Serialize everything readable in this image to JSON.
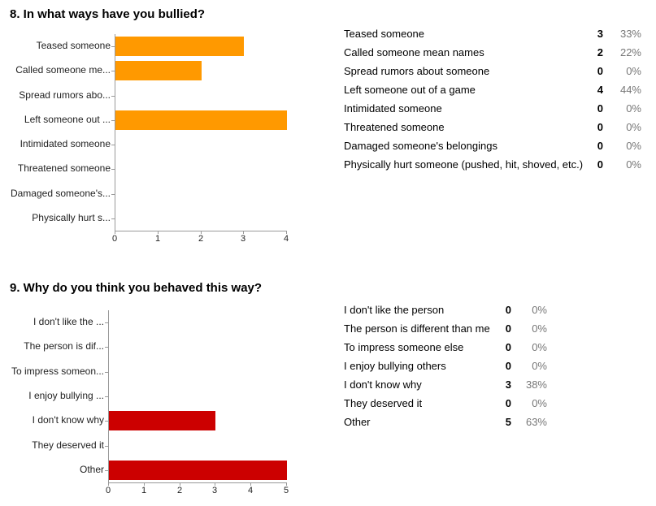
{
  "questions": [
    {
      "title": "8. In what ways have you bullied?",
      "bar_color": "#ff9900",
      "axis_ticks": [
        "0",
        "1",
        "2",
        "3",
        "4"
      ],
      "short_labels": [
        "Teased someone",
        "Called someone me...",
        "Spread rumors abo...",
        "Left someone out ...",
        "Intimidated someone",
        "Threatened someone",
        "Damaged someone's...",
        "Physically hurt s..."
      ],
      "rows": [
        {
          "label": "Teased someone",
          "count": "3",
          "percent": "33%"
        },
        {
          "label": "Called someone mean names",
          "count": "2",
          "percent": "22%"
        },
        {
          "label": "Spread rumors about someone",
          "count": "0",
          "percent": "0%"
        },
        {
          "label": "Left someone out of a game",
          "count": "4",
          "percent": "44%"
        },
        {
          "label": "Intimidated someone",
          "count": "0",
          "percent": "0%"
        },
        {
          "label": "Threatened someone",
          "count": "0",
          "percent": "0%"
        },
        {
          "label": "Damaged someone's belongings",
          "count": "0",
          "percent": "0%"
        },
        {
          "label": "Physically hurt someone (pushed, hit, shoved, etc.)",
          "count": "0",
          "percent": "0%"
        }
      ]
    },
    {
      "title": "9. Why do you think you behaved this way?",
      "bar_color": "#cc0000",
      "axis_ticks": [
        "0",
        "1",
        "2",
        "3",
        "4",
        "5"
      ],
      "short_labels": [
        "I don't like the ...",
        "The person is dif...",
        "To impress someon...",
        "I enjoy bullying ...",
        "I don't know why",
        "They deserved it",
        "Other"
      ],
      "rows": [
        {
          "label": "I don't like the person",
          "count": "0",
          "percent": "0%"
        },
        {
          "label": "The person is different than me",
          "count": "0",
          "percent": "0%"
        },
        {
          "label": "To impress someone else",
          "count": "0",
          "percent": "0%"
        },
        {
          "label": "I enjoy bullying others",
          "count": "0",
          "percent": "0%"
        },
        {
          "label": "I don't know why",
          "count": "3",
          "percent": "38%"
        },
        {
          "label": "They deserved it",
          "count": "0",
          "percent": "0%"
        },
        {
          "label": "Other",
          "count": "5",
          "percent": "63%"
        }
      ]
    }
  ],
  "chart_data": [
    {
      "type": "bar",
      "orientation": "horizontal",
      "title": "8. In what ways have you bullied?",
      "categories": [
        "Teased someone",
        "Called someone mean names",
        "Spread rumors about someone",
        "Left someone out of a game",
        "Intimidated someone",
        "Threatened someone",
        "Damaged someone's belongings",
        "Physically hurt someone (pushed, hit, shoved, etc.)"
      ],
      "values": [
        3,
        2,
        0,
        4,
        0,
        0,
        0,
        0
      ],
      "percents": [
        "33%",
        "22%",
        "0%",
        "44%",
        "0%",
        "0%",
        "0%",
        "0%"
      ],
      "xlim": [
        0,
        4
      ],
      "xticks": [
        0,
        1,
        2,
        3,
        4
      ],
      "color": "#ff9900",
      "grid": false,
      "legend": "none"
    },
    {
      "type": "bar",
      "orientation": "horizontal",
      "title": "9. Why do you think you behaved this way?",
      "categories": [
        "I don't like the person",
        "The person is different than me",
        "To impress someone else",
        "I enjoy bullying others",
        "I don't know why",
        "They deserved it",
        "Other"
      ],
      "values": [
        0,
        0,
        0,
        0,
        3,
        0,
        5
      ],
      "percents": [
        "0%",
        "0%",
        "0%",
        "0%",
        "38%",
        "0%",
        "63%"
      ],
      "xlim": [
        0,
        5
      ],
      "xticks": [
        0,
        1,
        2,
        3,
        4,
        5
      ],
      "color": "#cc0000",
      "grid": false,
      "legend": "none"
    }
  ]
}
